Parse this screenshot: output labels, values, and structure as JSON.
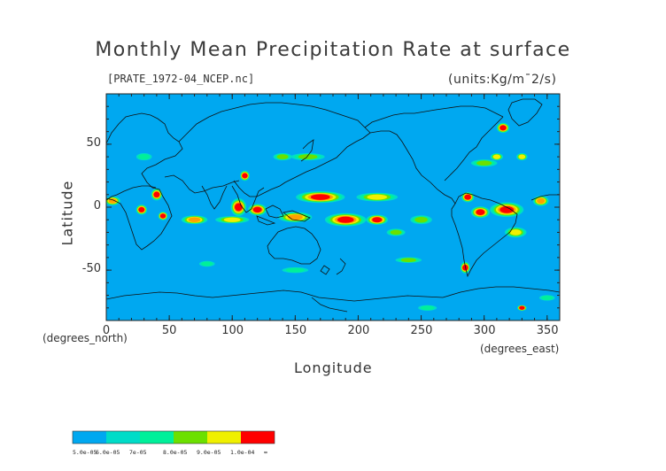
{
  "title": "Monthly Mean Precipitation Rate at surface",
  "subtitle_left": "[PRATE_1972-04_NCEP.nc]",
  "subtitle_right": "(units:Kg/m¯2/s)",
  "chart_data": {
    "type": "heatmap",
    "xlabel": "Longitude",
    "ylabel": "Latitude",
    "x_unit_label": "(degrees_east)",
    "y_unit_label": "(degrees_north)",
    "xlim": [
      0,
      360
    ],
    "ylim": [
      -90,
      90
    ],
    "x_ticks": [
      "0",
      "50",
      "100",
      "150",
      "200",
      "250",
      "300",
      "350"
    ],
    "y_ticks": [
      "50",
      "0",
      "-50"
    ],
    "background_color": "#00a8f0",
    "colorbar": {
      "colors": [
        "#00a8f0",
        "#00dcc8",
        "#00f09a",
        "#6ce000",
        "#f0f000",
        "#ffa000",
        "#ff0000"
      ],
      "labels": [
        "5.0e-05",
        "6.0e-05",
        "7e-05",
        "8.0e-05",
        "9.0e-05",
        "1.0e-04",
        "∞"
      ]
    },
    "regions": [
      {
        "lon": 170,
        "lat": 8,
        "level": 6,
        "w": 30,
        "h": 6
      },
      {
        "lon": 215,
        "lat": 8,
        "level": 4,
        "w": 25,
        "h": 4
      },
      {
        "lon": 190,
        "lat": -10,
        "level": 6,
        "w": 25,
        "h": 7
      },
      {
        "lon": 215,
        "lat": -10,
        "level": 6,
        "w": 12,
        "h": 5
      },
      {
        "lon": 150,
        "lat": -8,
        "level": 5,
        "w": 20,
        "h": 5
      },
      {
        "lon": 105,
        "lat": 0,
        "level": 6,
        "w": 8,
        "h": 10
      },
      {
        "lon": 120,
        "lat": -2,
        "level": 6,
        "w": 10,
        "h": 6
      },
      {
        "lon": 318,
        "lat": -2,
        "level": 6,
        "w": 20,
        "h": 8
      },
      {
        "lon": 297,
        "lat": -4,
        "level": 6,
        "w": 10,
        "h": 6
      },
      {
        "lon": 287,
        "lat": 8,
        "level": 6,
        "w": 6,
        "h": 5
      },
      {
        "lon": 40,
        "lat": 10,
        "level": 6,
        "w": 5,
        "h": 6
      },
      {
        "lon": 28,
        "lat": -2,
        "level": 6,
        "w": 5,
        "h": 5
      },
      {
        "lon": 45,
        "lat": -7,
        "level": 6,
        "w": 4,
        "h": 4
      },
      {
        "lon": 315,
        "lat": 63,
        "level": 6,
        "w": 6,
        "h": 5
      },
      {
        "lon": 285,
        "lat": -48,
        "level": 6,
        "w": 4,
        "h": 6
      },
      {
        "lon": 110,
        "lat": 25,
        "level": 6,
        "w": 4,
        "h": 5
      },
      {
        "lon": 5,
        "lat": 5,
        "level": 5,
        "w": 8,
        "h": 4
      },
      {
        "lon": 70,
        "lat": -10,
        "level": 5,
        "w": 15,
        "h": 4
      },
      {
        "lon": 100,
        "lat": -10,
        "level": 4,
        "w": 20,
        "h": 3
      },
      {
        "lon": 345,
        "lat": 5,
        "level": 5,
        "w": 8,
        "h": 5
      },
      {
        "lon": 325,
        "lat": -20,
        "level": 4,
        "w": 12,
        "h": 5
      },
      {
        "lon": 250,
        "lat": -10,
        "level": 3,
        "w": 12,
        "h": 4
      },
      {
        "lon": 160,
        "lat": 40,
        "level": 3,
        "w": 20,
        "h": 3
      },
      {
        "lon": 140,
        "lat": 40,
        "level": 3,
        "w": 10,
        "h": 3
      },
      {
        "lon": 300,
        "lat": 35,
        "level": 3,
        "w": 15,
        "h": 3
      },
      {
        "lon": 240,
        "lat": -42,
        "level": 3,
        "w": 15,
        "h": 2
      },
      {
        "lon": 310,
        "lat": 40,
        "level": 4,
        "w": 6,
        "h": 3
      },
      {
        "lon": 330,
        "lat": 40,
        "level": 4,
        "w": 5,
        "h": 3
      },
      {
        "lon": 30,
        "lat": 40,
        "level": 2,
        "w": 8,
        "h": 3
      },
      {
        "lon": 80,
        "lat": -45,
        "level": 2,
        "w": 8,
        "h": 2
      },
      {
        "lon": 150,
        "lat": -50,
        "level": 2,
        "w": 15,
        "h": 2
      },
      {
        "lon": 230,
        "lat": -20,
        "level": 3,
        "w": 10,
        "h": 3
      },
      {
        "lon": 330,
        "lat": -80,
        "level": 6,
        "w": 4,
        "h": 2
      },
      {
        "lon": 255,
        "lat": -80,
        "level": 2,
        "w": 10,
        "h": 2
      },
      {
        "lon": 350,
        "lat": -72,
        "level": 2,
        "w": 8,
        "h": 2
      }
    ]
  }
}
